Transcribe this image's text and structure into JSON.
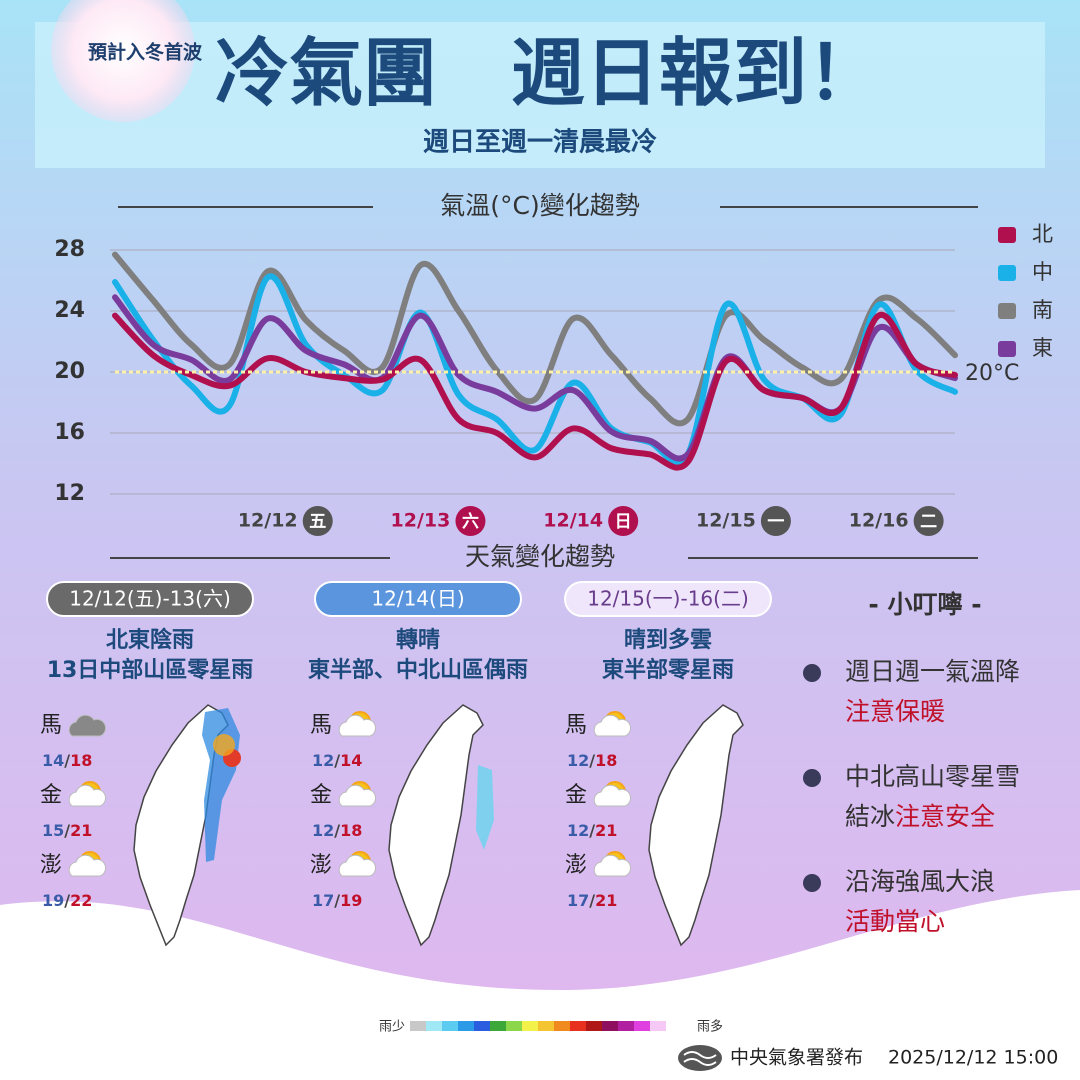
{
  "header": {
    "tag": "預計入冬首波",
    "title": "冷氣團　週日報到！",
    "subtitle": "週日至週一清晨最冷"
  },
  "chart_data": {
    "type": "line",
    "title": "氣溫(°C)變化趨勢",
    "categories": [
      null,
      null,
      null,
      null,
      "12/12",
      null,
      null,
      null,
      "12/13",
      null,
      null,
      null,
      "12/14",
      null,
      null,
      null,
      "12/15",
      null,
      null,
      null,
      "12/16",
      null,
      null
    ],
    "weekdays": [
      null,
      null,
      null,
      null,
      "五",
      null,
      null,
      null,
      "六",
      null,
      null,
      null,
      "日",
      null,
      null,
      null,
      "一",
      null,
      null,
      null,
      "二",
      null,
      null
    ],
    "weekday_colors": [
      null,
      null,
      null,
      null,
      "#555555",
      null,
      null,
      null,
      "#b0104e",
      null,
      null,
      null,
      "#b0104e",
      null,
      null,
      null,
      "#555555",
      null,
      null,
      null,
      "#555555",
      null,
      null
    ],
    "series": [
      {
        "name": "南",
        "color": "#7f7f7f",
        "values": [
          27.7,
          24.7,
          21.8,
          20.5,
          26.6,
          23.4,
          21.4,
          20.3,
          27.0,
          24.0,
          20.1,
          18.2,
          23.5,
          21.1,
          18.3,
          16.9,
          23.7,
          22.1,
          20.3,
          19.5,
          24.7,
          23.5,
          21.1
        ]
      },
      {
        "name": "中",
        "color": "#1ab0e8",
        "values": [
          25.9,
          22.1,
          19.1,
          17.8,
          26.2,
          21.8,
          19.8,
          18.8,
          23.9,
          18.5,
          16.9,
          14.9,
          19.3,
          16.3,
          15.4,
          14.6,
          24.4,
          19.5,
          18.3,
          17.2,
          24.4,
          20.1,
          18.7
        ]
      },
      {
        "name": "東",
        "color": "#7a3c9c",
        "values": [
          24.9,
          21.8,
          20.8,
          19.5,
          23.5,
          21.4,
          20.5,
          19.6,
          23.7,
          19.8,
          18.7,
          17.6,
          18.8,
          16.1,
          15.5,
          14.6,
          20.9,
          18.8,
          18.3,
          17.6,
          22.9,
          20.5,
          19.6
        ]
      },
      {
        "name": "北",
        "color": "#b0104e",
        "values": [
          23.7,
          21.1,
          19.8,
          19.1,
          20.9,
          20.0,
          19.6,
          19.5,
          20.8,
          16.9,
          16.0,
          14.4,
          16.3,
          15.0,
          14.6,
          14.1,
          20.7,
          18.8,
          18.3,
          17.6,
          23.7,
          20.5,
          19.8
        ]
      }
    ],
    "legend_order": [
      3,
      1,
      0,
      2
    ],
    "ylim": [
      12,
      28
    ],
    "yticks": [
      12,
      16,
      20,
      24,
      28
    ],
    "grid": true,
    "reference_line": {
      "value": 20,
      "label": "20°C",
      "color": "#fff2a8"
    }
  },
  "weather": {
    "title": "天氣變化趨勢",
    "panels": [
      {
        "date": "12/12(五)-13(六)",
        "lines": [
          "北東陰雨",
          "13日中部山區零星雨"
        ],
        "islands": [
          "馬",
          "金",
          "澎"
        ],
        "lows": [
          14,
          15,
          19
        ],
        "highs": [
          18,
          21,
          22
        ]
      },
      {
        "date": "12/14(日)",
        "lines": [
          "轉晴",
          "東半部、中北山區偶雨"
        ],
        "islands": [
          "馬",
          "金",
          "澎"
        ],
        "lows": [
          12,
          12,
          17
        ],
        "highs": [
          14,
          18,
          19
        ]
      },
      {
        "date": "12/15(一)-16(二)",
        "lines": [
          "晴到多雲",
          "東半部零星雨"
        ],
        "islands": [
          "馬",
          "金",
          "澎"
        ],
        "lows": [
          12,
          12,
          17
        ],
        "highs": [
          18,
          21,
          21
        ]
      }
    ],
    "rain_low": "雨少",
    "rain_high": "雨多"
  },
  "tips": {
    "title": "- 小叮嚀 -",
    "items": [
      {
        "line1": "週日週一氣溫降",
        "line2": [
          {
            "text": "注意保暖",
            "alert": true
          }
        ]
      },
      {
        "line1": "中北高山零星雪",
        "line2": [
          {
            "text": "結冰",
            "alert": false
          },
          {
            "text": "注意安全",
            "alert": true
          }
        ]
      },
      {
        "line1": "沿海強風大浪",
        "line2": [
          {
            "text": "活動當心",
            "alert": true
          }
        ]
      }
    ]
  },
  "footer": {
    "agency": "中央氣象署發布",
    "time": "2025/12/12 15:00"
  }
}
